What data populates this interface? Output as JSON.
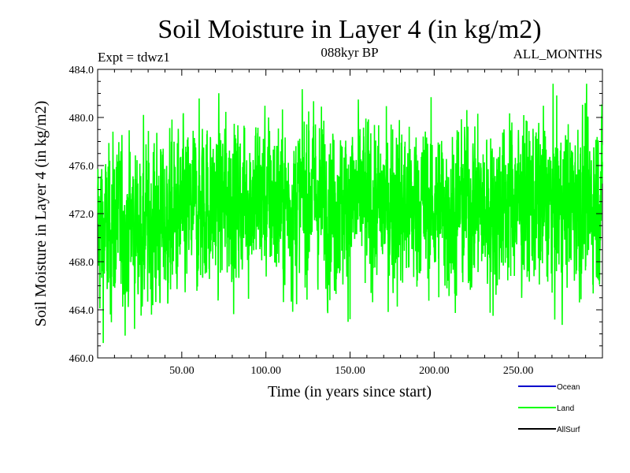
{
  "chart_data": {
    "type": "line",
    "title": "Soil Moisture in Layer 4 (in kg/m2)",
    "subtitle_left": "Expt = tdwz1",
    "subtitle_center": "088kyr BP",
    "subtitle_right": "ALL_MONTHS",
    "xlabel": "Time (in years since start)",
    "ylabel": "Soil Moisture in Layer 4 (in kg/m2)",
    "xlim": [
      0,
      300
    ],
    "ylim": [
      460.0,
      484.0
    ],
    "x_ticks": [
      50,
      100,
      150,
      200,
      250
    ],
    "x_tick_labels": [
      "50.00",
      "100.00",
      "150.00",
      "200.00",
      "250.00"
    ],
    "y_ticks": [
      460,
      464,
      468,
      472,
      476,
      480,
      484
    ],
    "y_tick_labels": [
      "460.0",
      "464.0",
      "468.0",
      "472.0",
      "476.0",
      "480.0",
      "484.0"
    ],
    "grid": false,
    "legend_position": "bottom-right",
    "series": [
      {
        "name": "Land",
        "color": "#00ff00",
        "x_start": 0,
        "x_step": 5,
        "values": [
          471.0,
          470.2,
          471.5,
          470.8,
          471.2,
          470.5,
          471.0,
          471.3,
          470.9,
          471.6,
          471.8,
          472.2,
          472.6,
          472.9,
          472.7,
          473.0,
          473.2,
          472.8,
          473.1,
          473.4,
          473.3,
          473.0,
          472.8,
          472.5,
          473.2,
          473.8,
          473.5,
          473.0,
          472.6,
          472.4,
          472.9,
          473.1,
          472.7,
          472.3,
          472.5,
          472.8,
          472.6,
          472.4,
          472.9,
          472.7,
          472.5,
          472.3,
          472.0,
          472.6,
          473.0,
          472.8,
          472.4,
          472.2,
          472.7,
          473.2,
          473.0,
          472.6,
          472.9,
          473.1,
          472.7,
          472.5,
          472.8,
          473.0,
          472.9,
          473.2,
          473.4
        ]
      }
    ],
    "series_envelope_note": "",
    "legend": [
      {
        "label": "Ocean",
        "color": "#0000cc"
      },
      {
        "label": "Land",
        "color": "#00ff00"
      },
      {
        "label": "AllSurf",
        "color": "#000000"
      }
    ]
  }
}
